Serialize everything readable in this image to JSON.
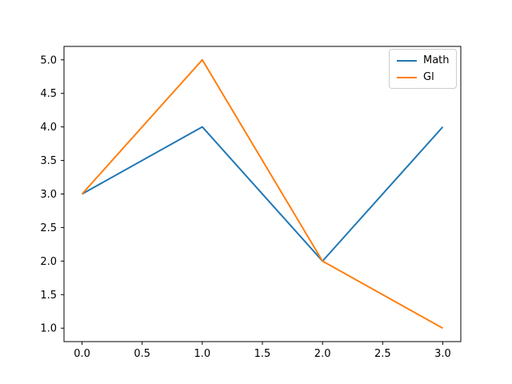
{
  "chart_data": {
    "type": "line",
    "title": "",
    "xlabel": "",
    "ylabel": "",
    "x": [
      0,
      1,
      2,
      3
    ],
    "series": [
      {
        "name": "Math",
        "color": "#1f77b4",
        "values": [
          3,
          4,
          2,
          4
        ]
      },
      {
        "name": "Gl",
        "color": "#ff7f0e",
        "values": [
          3,
          5,
          2,
          1
        ]
      }
    ],
    "xlim": [
      -0.15,
      3.15
    ],
    "ylim": [
      0.8,
      5.2
    ],
    "xtick_labels": [
      "0.0",
      "0.5",
      "1.0",
      "1.5",
      "2.0",
      "2.5",
      "3.0"
    ],
    "xtick_values": [
      0,
      0.5,
      1,
      1.5,
      2,
      2.5,
      3
    ],
    "ytick_labels": [
      "1.0",
      "1.5",
      "2.0",
      "2.5",
      "3.0",
      "3.5",
      "4.0",
      "4.5",
      "5.0"
    ],
    "ytick_values": [
      1,
      1.5,
      2,
      2.5,
      3,
      3.5,
      4,
      4.5,
      5
    ],
    "grid": false,
    "legend_position": "upper right",
    "line_width": 2,
    "axis_color": "#000000",
    "background_color": "#ffffff"
  }
}
